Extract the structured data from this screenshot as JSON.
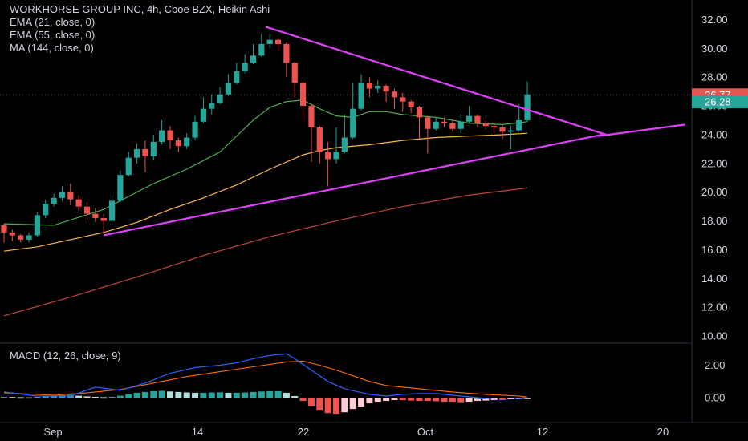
{
  "header": {
    "title": "WORKHORSE GROUP INC, 4h, Cboe BZX, Heikin Ashi",
    "ema21_label": "EMA (21, close, 0)",
    "ema55_label": "EMA (55, close, 0)",
    "ma144_label": "MA (144, close, 0)",
    "macd_label": "MACD (12, 26, close, 9)"
  },
  "colors": {
    "background": "#000000",
    "up_candle": "#26a69a",
    "down_candle": "#ef5350",
    "trendline": "#e040fb",
    "ema21": "#4caf50",
    "ema55": "#ffb74d",
    "ma144": "#b0413e",
    "macd_line": "#2962ff",
    "signal_line": "#ff6d00",
    "last_price_tag": "#ef5350",
    "close_tag": "#26a69a"
  },
  "chart_data": {
    "type": "candlestick",
    "candle_style": "Heikin Ashi",
    "x_ticks": [
      "Sep",
      "14",
      "22",
      "Oct",
      "12",
      "20"
    ],
    "price_axis": {
      "ticks": [
        "32.00",
        "30.00",
        "28.00",
        "26.00",
        "24.00",
        "22.00",
        "20.00",
        "18.00",
        "16.00",
        "14.00",
        "12.00",
        "10.00"
      ],
      "ylim": [
        9.5,
        33.0
      ]
    },
    "macd_axis": {
      "ticks": [
        "2.00",
        "0.00"
      ]
    },
    "price_tags": [
      {
        "label": "26.77",
        "value": 26.77,
        "color": "#ef5350"
      },
      {
        "label": "26.28",
        "value": 26.28,
        "color": "#26a69a"
      }
    ],
    "candles": [
      [
        17.7,
        17.2,
        17.8,
        16.5
      ],
      [
        17.2,
        17.0,
        17.4,
        16.6
      ],
      [
        17.0,
        16.7,
        17.1,
        16.5
      ],
      [
        16.7,
        17.0,
        17.2,
        16.5
      ],
      [
        17.0,
        18.4,
        18.6,
        16.9
      ],
      [
        18.4,
        19.2,
        19.5,
        18.2
      ],
      [
        19.2,
        19.6,
        19.9,
        19.0
      ],
      [
        19.6,
        20.0,
        20.4,
        19.4
      ],
      [
        20.0,
        19.5,
        20.6,
        19.1
      ],
      [
        19.5,
        19.0,
        19.8,
        18.7
      ],
      [
        19.0,
        18.5,
        19.3,
        18.1
      ],
      [
        18.5,
        18.2,
        18.9,
        17.9
      ],
      [
        18.2,
        18.0,
        18.5,
        17.1
      ],
      [
        18.0,
        19.4,
        19.8,
        17.9
      ],
      [
        19.4,
        21.2,
        21.5,
        19.3
      ],
      [
        21.2,
        22.4,
        22.8,
        21.1
      ],
      [
        22.4,
        23.0,
        23.4,
        22.0
      ],
      [
        23.0,
        22.5,
        23.6,
        21.4
      ],
      [
        22.5,
        23.5,
        24.0,
        22.2
      ],
      [
        23.5,
        24.3,
        25.0,
        23.3
      ],
      [
        24.3,
        23.6,
        24.6,
        23.0
      ],
      [
        23.6,
        23.2,
        23.8,
        22.8
      ],
      [
        23.2,
        23.8,
        24.1,
        23.0
      ],
      [
        23.8,
        24.9,
        25.3,
        23.6
      ],
      [
        24.9,
        25.8,
        26.6,
        24.8
      ],
      [
        25.8,
        26.2,
        26.8,
        25.4
      ],
      [
        26.2,
        26.8,
        27.3,
        26.1
      ],
      [
        26.8,
        27.6,
        28.2,
        26.7
      ],
      [
        27.6,
        28.4,
        29.0,
        27.5
      ],
      [
        28.4,
        29.0,
        29.6,
        28.3
      ],
      [
        29.0,
        29.5,
        30.3,
        28.9
      ],
      [
        29.5,
        30.3,
        31.0,
        29.4
      ],
      [
        30.3,
        30.6,
        31.0,
        30.0
      ],
      [
        30.6,
        30.3,
        30.7,
        29.8
      ],
      [
        30.3,
        29.0,
        30.4,
        28.0
      ],
      [
        29.0,
        27.6,
        29.1,
        26.6
      ],
      [
        27.6,
        26.0,
        27.7,
        24.9
      ],
      [
        26.0,
        24.5,
        26.1,
        22.1
      ],
      [
        24.5,
        22.8,
        24.6,
        22.0
      ],
      [
        22.8,
        22.3,
        23.5,
        20.4
      ],
      [
        22.3,
        22.8,
        24.5,
        22.0
      ],
      [
        22.8,
        23.8,
        25.4,
        22.7
      ],
      [
        23.8,
        25.8,
        27.6,
        23.7
      ],
      [
        25.8,
        27.6,
        28.2,
        25.7
      ],
      [
        27.6,
        27.2,
        28.0,
        26.6
      ],
      [
        27.2,
        27.4,
        27.8,
        26.9
      ],
      [
        27.4,
        27.0,
        27.5,
        26.3
      ],
      [
        27.0,
        26.6,
        27.2,
        25.8
      ],
      [
        26.6,
        26.3,
        26.9,
        25.6
      ],
      [
        26.3,
        25.9,
        26.4,
        25.5
      ],
      [
        25.9,
        25.2,
        26.0,
        23.7
      ],
      [
        25.2,
        24.4,
        25.3,
        22.7
      ],
      [
        24.4,
        24.9,
        25.2,
        24.3
      ],
      [
        24.9,
        24.8,
        25.2,
        24.5
      ],
      [
        24.8,
        24.4,
        25.0,
        24.2
      ],
      [
        24.4,
        24.9,
        25.4,
        24.1
      ],
      [
        24.9,
        25.3,
        26.0,
        24.8
      ],
      [
        25.3,
        24.8,
        25.4,
        24.5
      ],
      [
        24.8,
        24.6,
        25.0,
        24.4
      ],
      [
        24.6,
        24.5,
        24.8,
        24.1
      ],
      [
        24.5,
        24.2,
        24.7,
        23.7
      ],
      [
        24.2,
        24.3,
        24.6,
        23.0
      ],
      [
        24.3,
        25.0,
        26.1,
        24.2
      ],
      [
        25.0,
        26.8,
        27.7,
        24.9
      ]
    ],
    "ema21": [
      [
        0,
        17.8
      ],
      [
        6,
        17.7
      ],
      [
        12,
        18.8
      ],
      [
        18,
        20.6
      ],
      [
        22,
        21.6
      ],
      [
        26,
        22.8
      ],
      [
        30,
        25.0
      ],
      [
        32,
        25.9
      ],
      [
        34,
        26.3
      ],
      [
        36,
        26.4
      ],
      [
        38,
        25.8
      ],
      [
        40,
        25.3
      ],
      [
        42,
        25.2
      ],
      [
        44,
        25.6
      ],
      [
        46,
        25.6
      ],
      [
        48,
        25.4
      ],
      [
        52,
        25.2
      ],
      [
        56,
        24.8
      ],
      [
        60,
        24.7
      ],
      [
        63,
        24.9
      ]
    ],
    "ema55": [
      [
        0,
        15.9
      ],
      [
        4,
        16.2
      ],
      [
        8,
        16.7
      ],
      [
        12,
        17.2
      ],
      [
        16,
        17.9
      ],
      [
        20,
        18.8
      ],
      [
        24,
        19.6
      ],
      [
        28,
        20.5
      ],
      [
        32,
        21.6
      ],
      [
        36,
        22.6
      ],
      [
        38,
        22.9
      ],
      [
        40,
        23.1
      ],
      [
        44,
        23.3
      ],
      [
        48,
        23.6
      ],
      [
        52,
        23.8
      ],
      [
        56,
        23.9
      ],
      [
        60,
        24.0
      ],
      [
        63,
        24.1
      ]
    ],
    "ma144": [
      [
        0,
        11.4
      ],
      [
        8,
        12.7
      ],
      [
        16,
        14.1
      ],
      [
        24,
        15.6
      ],
      [
        32,
        16.9
      ],
      [
        40,
        18.0
      ],
      [
        48,
        19.0
      ],
      [
        56,
        19.8
      ],
      [
        63,
        20.3
      ]
    ],
    "trendlines": [
      {
        "from": [
          12,
          17.0
        ],
        "to": [
          72,
          24.0
        ]
      },
      {
        "from": [
          31.5,
          31.5
        ],
        "to": [
          72.5,
          24.0
        ]
      },
      {
        "from": [
          71.5,
          23.9
        ],
        "to": [
          82,
          24.7
        ]
      }
    ],
    "macd": {
      "line": [
        [
          0,
          0.35
        ],
        [
          4,
          0.1
        ],
        [
          8,
          0.1
        ],
        [
          11,
          0.65
        ],
        [
          14,
          0.45
        ],
        [
          17,
          0.9
        ],
        [
          20,
          1.5
        ],
        [
          23,
          1.85
        ],
        [
          26,
          2.0
        ],
        [
          28,
          2.15
        ],
        [
          30,
          2.4
        ],
        [
          32,
          2.6
        ],
        [
          34,
          2.7
        ],
        [
          35,
          2.4
        ],
        [
          37,
          1.7
        ],
        [
          39,
          1.0
        ],
        [
          41,
          0.55
        ],
        [
          44,
          0.2
        ],
        [
          46,
          0.1
        ],
        [
          48,
          0.2
        ],
        [
          50,
          0.25
        ],
        [
          52,
          0.25
        ],
        [
          54,
          0.15
        ],
        [
          56,
          0.05
        ],
        [
          58,
          -0.05
        ],
        [
          60,
          -0.1
        ],
        [
          62,
          -0.05
        ],
        [
          63,
          0.05
        ]
      ],
      "signal": [
        [
          0,
          0.3
        ],
        [
          6,
          0.15
        ],
        [
          10,
          0.3
        ],
        [
          14,
          0.5
        ],
        [
          18,
          0.9
        ],
        [
          22,
          1.3
        ],
        [
          26,
          1.6
        ],
        [
          30,
          1.9
        ],
        [
          34,
          2.2
        ],
        [
          36,
          2.25
        ],
        [
          38,
          2.0
        ],
        [
          40,
          1.7
        ],
        [
          42,
          1.35
        ],
        [
          44,
          1.0
        ],
        [
          46,
          0.75
        ],
        [
          50,
          0.55
        ],
        [
          54,
          0.35
        ],
        [
          58,
          0.2
        ],
        [
          62,
          0.1
        ],
        [
          63,
          0.05
        ]
      ],
      "histogram": [
        0.05,
        0.04,
        0.03,
        0.03,
        0.05,
        0.08,
        0.12,
        0.15,
        0.18,
        0.12,
        0.08,
        0.05,
        0.03,
        0.05,
        0.12,
        0.22,
        0.3,
        0.35,
        0.4,
        0.42,
        0.38,
        0.35,
        0.32,
        0.3,
        0.3,
        0.32,
        0.33,
        0.3,
        0.3,
        0.32,
        0.35,
        0.38,
        0.4,
        0.4,
        0.3,
        0.1,
        -0.2,
        -0.5,
        -0.75,
        -0.95,
        -1.0,
        -0.9,
        -0.7,
        -0.55,
        -0.35,
        -0.25,
        -0.2,
        -0.15,
        -0.15,
        -0.18,
        -0.2,
        -0.2,
        -0.22,
        -0.25,
        -0.25,
        -0.28,
        -0.25,
        -0.2,
        -0.18,
        -0.15,
        -0.15,
        -0.1,
        -0.06,
        -0.02
      ]
    }
  }
}
